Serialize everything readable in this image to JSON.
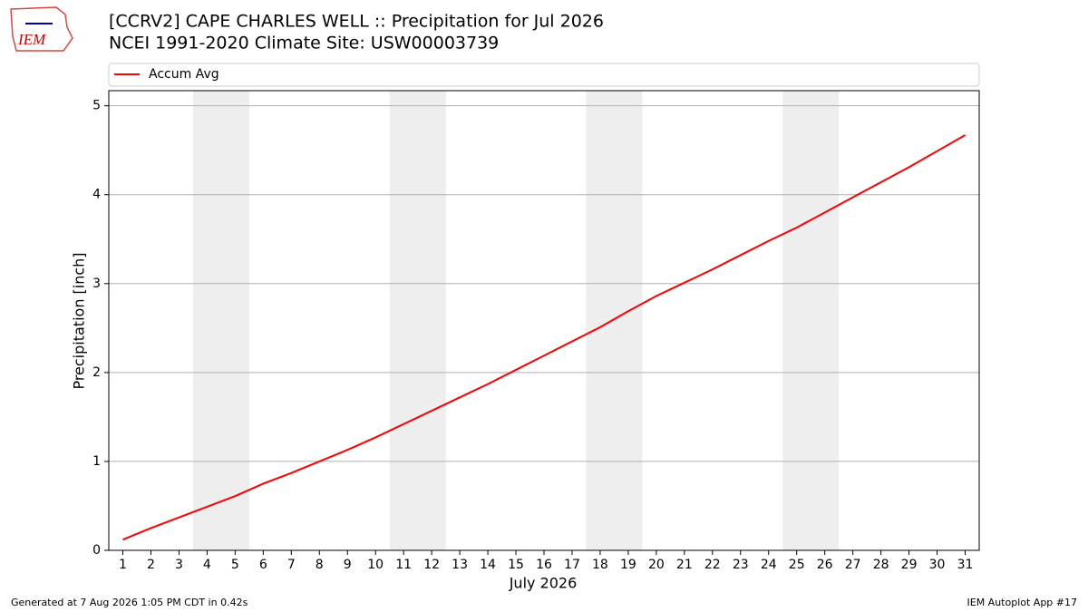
{
  "logo": "IEM",
  "footer": {
    "left": "Generated at 7 Aug 2026 1:05 PM CDT in 0.42s",
    "right": "IEM Autoplot App #17"
  },
  "chart_data": {
    "type": "line",
    "title": "[CCRV2] CAPE CHARLES WELL :: Precipitation for Jul 2026",
    "subtitle": "NCEI 1991-2020 Climate Site: USW00003739",
    "xlabel": "July 2026",
    "ylabel": "Precipitation [inch]",
    "x": [
      1,
      2,
      3,
      4,
      5,
      6,
      7,
      8,
      9,
      10,
      11,
      12,
      13,
      14,
      15,
      16,
      17,
      18,
      19,
      20,
      21,
      22,
      23,
      24,
      25,
      26,
      27,
      28,
      29,
      30,
      31
    ],
    "series": [
      {
        "name": "Accum Avg",
        "color": "#ff0000",
        "values": [
          0.12,
          0.25,
          0.37,
          0.49,
          0.61,
          0.75,
          0.87,
          1.0,
          1.13,
          1.27,
          1.42,
          1.57,
          1.72,
          1.87,
          2.03,
          2.19,
          2.35,
          2.51,
          2.69,
          2.86,
          3.01,
          3.16,
          3.32,
          3.48,
          3.63,
          3.8,
          3.97,
          4.14,
          4.31,
          4.49,
          4.67
        ]
      }
    ],
    "shaded_spans": [
      [
        3.5,
        5.5
      ],
      [
        10.5,
        12.5
      ],
      [
        17.5,
        19.5
      ],
      [
        24.5,
        26.5
      ]
    ],
    "xlim": [
      0.5,
      31.5
    ],
    "ylim": [
      0,
      5.17
    ],
    "xticks": [
      1,
      2,
      3,
      4,
      5,
      6,
      7,
      8,
      9,
      10,
      11,
      12,
      13,
      14,
      15,
      16,
      17,
      18,
      19,
      20,
      21,
      22,
      23,
      24,
      25,
      26,
      27,
      28,
      29,
      30,
      31
    ],
    "yticks": [
      0,
      1,
      2,
      3,
      4,
      5
    ],
    "grid": true,
    "legend": "top"
  }
}
